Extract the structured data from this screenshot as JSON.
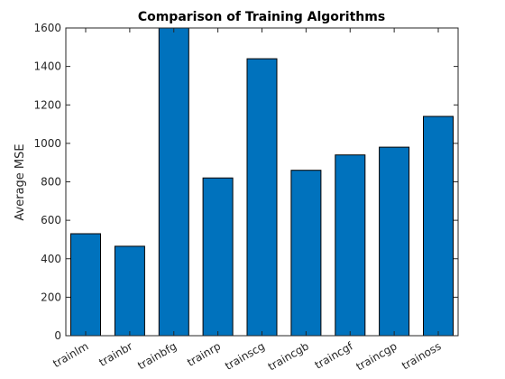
{
  "chart_data": {
    "type": "bar",
    "title": "Comparison of Training Algorithms",
    "xlabel": "",
    "ylabel": "Average MSE",
    "categories": [
      "trainlm",
      "trainbr",
      "trainbfg",
      "trainrp",
      "trainscg",
      "traincgb",
      "traincgf",
      "traincgp",
      "trainoss"
    ],
    "values": [
      530,
      465,
      1600,
      820,
      1440,
      860,
      940,
      980,
      1140
    ],
    "ylim": [
      0,
      1600
    ],
    "yticks": [
      0,
      200,
      400,
      600,
      800,
      1000,
      1200,
      1400,
      1600
    ],
    "grid": false,
    "bar_color": "#0072BD",
    "bar_edge_color": "#000000"
  }
}
